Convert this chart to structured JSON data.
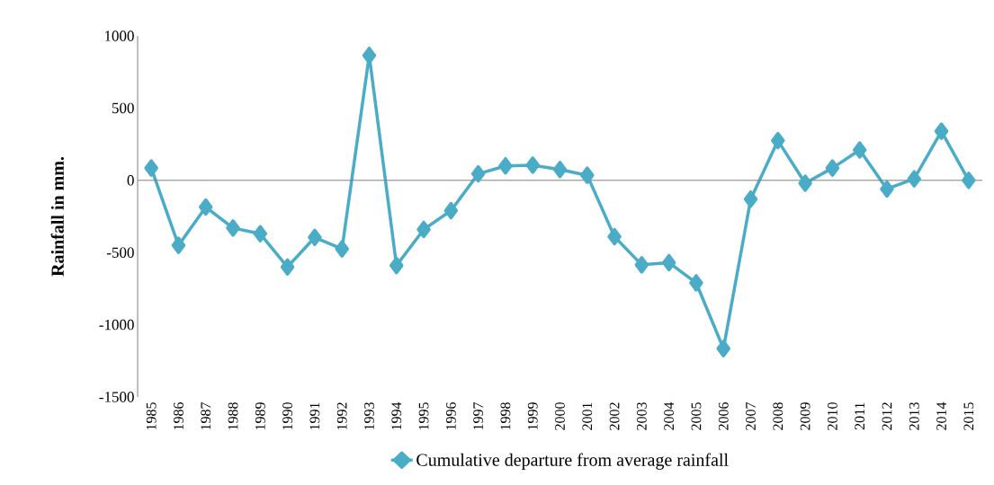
{
  "chart_data": {
    "type": "line",
    "ylabel": "Rainfall in mm.",
    "categories": [
      "1985",
      "1986",
      "1987",
      "1988",
      "1989",
      "1990",
      "1991",
      "1992",
      "1993",
      "1994",
      "1995",
      "1996",
      "1997",
      "1998",
      "1999",
      "2000",
      "2001",
      "2002",
      "2003",
      "2004",
      "2005",
      "2006",
      "2007",
      "2008",
      "2009",
      "2010",
      "2011",
      "2012",
      "2013",
      "2014",
      "2015"
    ],
    "series": [
      {
        "name": "Cumulative departure from average rainfall",
        "color": "#4aacc6",
        "values": [
          85,
          -450,
          -185,
          -330,
          -370,
          -600,
          -395,
          -475,
          865,
          -590,
          -340,
          -210,
          45,
          100,
          105,
          75,
          35,
          -390,
          -585,
          -570,
          -710,
          -1165,
          -130,
          275,
          -20,
          85,
          210,
          -60,
          10,
          340,
          0
        ]
      }
    ],
    "ylim": [
      -1500,
      1000
    ],
    "yticks": [
      -1500,
      -1000,
      -500,
      0,
      500,
      1000
    ],
    "legend": "bottom",
    "marker": "diamond",
    "line_style": "solid"
  }
}
